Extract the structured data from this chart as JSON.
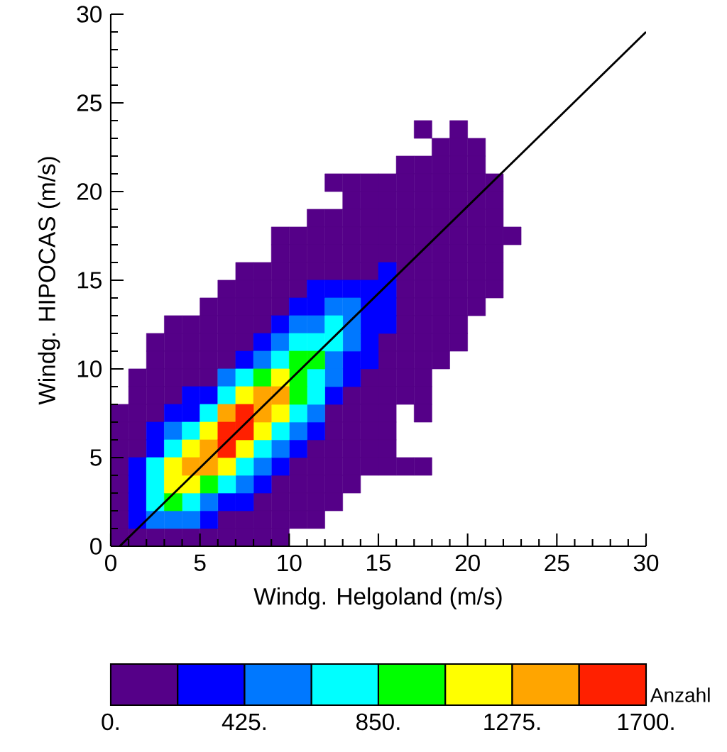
{
  "chart_data": {
    "type": "scatter",
    "marker": "square",
    "xlabel": "Windg. Helgoland (m/s)",
    "ylabel": "Windg. HIPOCAS (m/s)",
    "clabel": "Anzahl",
    "xlim": [
      0,
      30
    ],
    "ylim": [
      0,
      30
    ],
    "xticks": [
      0,
      5,
      10,
      15,
      20,
      25,
      30
    ],
    "yticks": [
      0,
      5,
      10,
      15,
      20,
      25,
      30
    ],
    "clim": [
      0,
      1700
    ],
    "cticks": [
      {
        "value": 0,
        "label": "0."
      },
      {
        "value": 425,
        "label": "425."
      },
      {
        "value": 850,
        "label": "850."
      },
      {
        "value": 1275,
        "label": "1275."
      },
      {
        "value": 1700,
        "label": "1700."
      }
    ],
    "series": [
      {
        "color": "#550088",
        "x": [
          17.5,
          19.5,
          18.5,
          19.5,
          20.5,
          16.5,
          17.5,
          18.5,
          19.5,
          20.5,
          12.5,
          13.5,
          14.5,
          15.5,
          16.5,
          17.5,
          18.5,
          19.5,
          20.5,
          21.5,
          13.5,
          14.5,
          15.5,
          16.5,
          17.5,
          18.5,
          19.5,
          20.5,
          21.5,
          11.5,
          12.5,
          13.5,
          14.5,
          15.5,
          16.5,
          17.5,
          18.5,
          19.5,
          20.5,
          21.5,
          9.5,
          10.5,
          11.5,
          12.5,
          13.5,
          14.5,
          15.5,
          16.5,
          17.5,
          18.5,
          19.5,
          20.5,
          21.5,
          22.5,
          9.5,
          10.5,
          11.5,
          12.5,
          13.5,
          14.5,
          15.5,
          16.5,
          17.5,
          18.5,
          19.5,
          20.5,
          21.5,
          7.5,
          8.5,
          9.5,
          10.5,
          11.5,
          12.5,
          13.5,
          14.5,
          16.5,
          17.5,
          18.5,
          19.5,
          20.5,
          21.5,
          6.5,
          7.5,
          8.5,
          9.5,
          10.5,
          16.5,
          17.5,
          18.5,
          19.5,
          20.5,
          21.5,
          5.5,
          6.5,
          7.5,
          8.5,
          9.5,
          16.5,
          17.5,
          18.5,
          19.5,
          20.5,
          3.5,
          4.5,
          5.5,
          6.5,
          7.5,
          8.5,
          16.5,
          17.5,
          18.5,
          19.5,
          2.5,
          3.5,
          4.5,
          5.5,
          6.5,
          7.5,
          15.5,
          16.5,
          17.5,
          18.5,
          19.5,
          2.5,
          3.5,
          4.5,
          5.5,
          6.5,
          15.5,
          16.5,
          17.5,
          18.5,
          1.5,
          2.5,
          3.5,
          4.5,
          5.5,
          14.5,
          15.5,
          16.5,
          17.5,
          1.5,
          2.5,
          3.5,
          13.5,
          14.5,
          15.5,
          16.5,
          17.5,
          0.5,
          1.5,
          2.5,
          12.5,
          13.5,
          14.5,
          15.5,
          17.5,
          0.5,
          1.5,
          12.5,
          13.5,
          14.5,
          15.5,
          0.5,
          1.5,
          11.5,
          12.5,
          13.5,
          14.5,
          15.5,
          0.5,
          10.5,
          11.5,
          12.5,
          13.5,
          14.5,
          15.5,
          16.5,
          17.5,
          0.5,
          9.5,
          10.5,
          11.5,
          12.5,
          13.5,
          0.5,
          8.5,
          9.5,
          10.5,
          11.5,
          12.5,
          0.5,
          6.5,
          7.5,
          8.5,
          9.5,
          10.5,
          11.5,
          0.5,
          1.5,
          2.5,
          3.5,
          4.5,
          5.5,
          6.5,
          7.5,
          8.5,
          9.5
        ],
        "values": [
          23.5,
          23.5,
          22.5,
          22.5,
          22.5,
          21.5,
          21.5,
          21.5,
          21.5,
          21.5,
          20.5,
          20.5,
          20.5,
          20.5,
          20.5,
          20.5,
          20.5,
          20.5,
          20.5,
          20.5,
          19.5,
          19.5,
          19.5,
          19.5,
          19.5,
          19.5,
          19.5,
          19.5,
          19.5,
          18.5,
          18.5,
          18.5,
          18.5,
          18.5,
          18.5,
          18.5,
          18.5,
          18.5,
          18.5,
          18.5,
          17.5,
          17.5,
          17.5,
          17.5,
          17.5,
          17.5,
          17.5,
          17.5,
          17.5,
          17.5,
          17.5,
          17.5,
          17.5,
          17.5,
          16.5,
          16.5,
          16.5,
          16.5,
          16.5,
          16.5,
          16.5,
          16.5,
          16.5,
          16.5,
          16.5,
          16.5,
          16.5,
          15.5,
          15.5,
          15.5,
          15.5,
          15.5,
          15.5,
          15.5,
          15.5,
          15.5,
          15.5,
          15.5,
          15.5,
          15.5,
          15.5,
          14.5,
          14.5,
          14.5,
          14.5,
          14.5,
          14.5,
          14.5,
          14.5,
          14.5,
          14.5,
          14.5,
          13.5,
          13.5,
          13.5,
          13.5,
          13.5,
          13.5,
          13.5,
          13.5,
          13.5,
          13.5,
          12.5,
          12.5,
          12.5,
          12.5,
          12.5,
          12.5,
          12.5,
          12.5,
          12.5,
          12.5,
          11.5,
          11.5,
          11.5,
          11.5,
          11.5,
          11.5,
          11.5,
          11.5,
          11.5,
          11.5,
          11.5,
          10.5,
          10.5,
          10.5,
          10.5,
          10.5,
          10.5,
          10.5,
          10.5,
          10.5,
          9.5,
          9.5,
          9.5,
          9.5,
          9.5,
          9.5,
          9.5,
          9.5,
          9.5,
          8.5,
          8.5,
          8.5,
          8.5,
          8.5,
          8.5,
          8.5,
          8.5,
          7.5,
          7.5,
          7.5,
          7.5,
          7.5,
          7.5,
          7.5,
          7.5,
          6.5,
          6.5,
          6.5,
          6.5,
          6.5,
          6.5,
          5.5,
          5.5,
          5.5,
          5.5,
          5.5,
          5.5,
          5.5,
          4.5,
          4.5,
          4.5,
          4.5,
          4.5,
          4.5,
          4.5,
          4.5,
          4.5,
          3.5,
          3.5,
          3.5,
          3.5,
          3.5,
          3.5,
          2.5,
          2.5,
          2.5,
          2.5,
          2.5,
          2.5,
          1.5,
          1.5,
          1.5,
          1.5,
          1.5,
          1.5,
          1.5,
          0.5,
          0.5,
          0.5,
          0.5,
          0.5,
          0.5,
          0.5,
          0.5,
          0.5,
          0.5
        ]
      },
      {
        "color": "#0000ff",
        "x": [
          15.5,
          11.5,
          12.5,
          13.5,
          14.5,
          15.5,
          10.5,
          11.5,
          14.5,
          15.5,
          9.5,
          14.5,
          15.5,
          8.5,
          14.5,
          7.5,
          13.5,
          14.5,
          13.5,
          4.5,
          5.5,
          12.5,
          3.5,
          4.5,
          2.5,
          11.5,
          2.5,
          10.5,
          1.5,
          9.5,
          1.5,
          8.5,
          1.5,
          6.5,
          7.5,
          1.5,
          5.5
        ],
        "values": [
          15.5,
          14.5,
          14.5,
          14.5,
          14.5,
          14.5,
          13.5,
          13.5,
          13.5,
          13.5,
          12.5,
          12.5,
          12.5,
          11.5,
          11.5,
          10.5,
          10.5,
          10.5,
          9.5,
          8.5,
          8.5,
          8.5,
          7.5,
          7.5,
          6.5,
          6.5,
          5.5,
          5.5,
          4.5,
          4.5,
          3.5,
          3.5,
          2.5,
          2.5,
          2.5,
          1.5,
          1.5
        ]
      },
      {
        "color": "#0078ff",
        "x": [
          12.5,
          13.5,
          10.5,
          11.5,
          13.5,
          9.5,
          13.5,
          8.5,
          12.5,
          6.5,
          12.5,
          11.5,
          3.5,
          10.5,
          9.5,
          8.5,
          7.5,
          5.5,
          2.5,
          3.5,
          4.5
        ],
        "values": [
          13.5,
          13.5,
          12.5,
          12.5,
          12.5,
          11.5,
          11.5,
          10.5,
          10.5,
          9.5,
          9.5,
          7.5,
          6.5,
          6.5,
          5.5,
          4.5,
          3.5,
          2.5,
          1.5,
          1.5,
          1.5
        ]
      },
      {
        "color": "#00ffff",
        "x": [
          12.5,
          10.5,
          11.5,
          12.5,
          9.5,
          7.5,
          11.5,
          6.5,
          11.5,
          5.5,
          10.5,
          4.5,
          9.5,
          3.5,
          8.5,
          2.5,
          7.5,
          2.5,
          6.5,
          2.5,
          4.5
        ],
        "values": [
          12.5,
          11.5,
          11.5,
          11.5,
          10.5,
          9.5,
          9.5,
          8.5,
          8.5,
          7.5,
          7.5,
          6.5,
          6.5,
          5.5,
          5.5,
          4.5,
          4.5,
          3.5,
          3.5,
          2.5,
          2.5
        ]
      },
      {
        "color": "#00ff00",
        "x": [
          10.5,
          11.5,
          8.5,
          10.5,
          10.5,
          5.5,
          3.5
        ],
        "values": [
          10.5,
          10.5,
          9.5,
          9.5,
          8.5,
          3.5,
          2.5
        ]
      },
      {
        "color": "#ffff00",
        "x": [
          9.5,
          7.5,
          9.5,
          5.5,
          8.5,
          4.5,
          7.5,
          3.5,
          6.5,
          3.5,
          4.5
        ],
        "values": [
          9.5,
          8.5,
          7.5,
          6.5,
          6.5,
          5.5,
          5.5,
          4.5,
          4.5,
          3.5,
          3.5
        ]
      },
      {
        "color": "#ffa500",
        "x": [
          8.5,
          9.5,
          6.5,
          8.5,
          5.5,
          4.5,
          5.5
        ],
        "values": [
          8.5,
          8.5,
          7.5,
          7.5,
          5.5,
          4.5,
          4.5
        ]
      },
      {
        "color": "#ff2000",
        "x": [
          7.5,
          6.5,
          7.5,
          6.5
        ],
        "values": [
          7.5,
          6.5,
          6.5,
          5.5
        ]
      },
      {
        "type": "line",
        "marker": "none",
        "color": "#000000",
        "x": [
          0.5,
          30
        ],
        "values": [
          0,
          29
        ]
      }
    ]
  }
}
